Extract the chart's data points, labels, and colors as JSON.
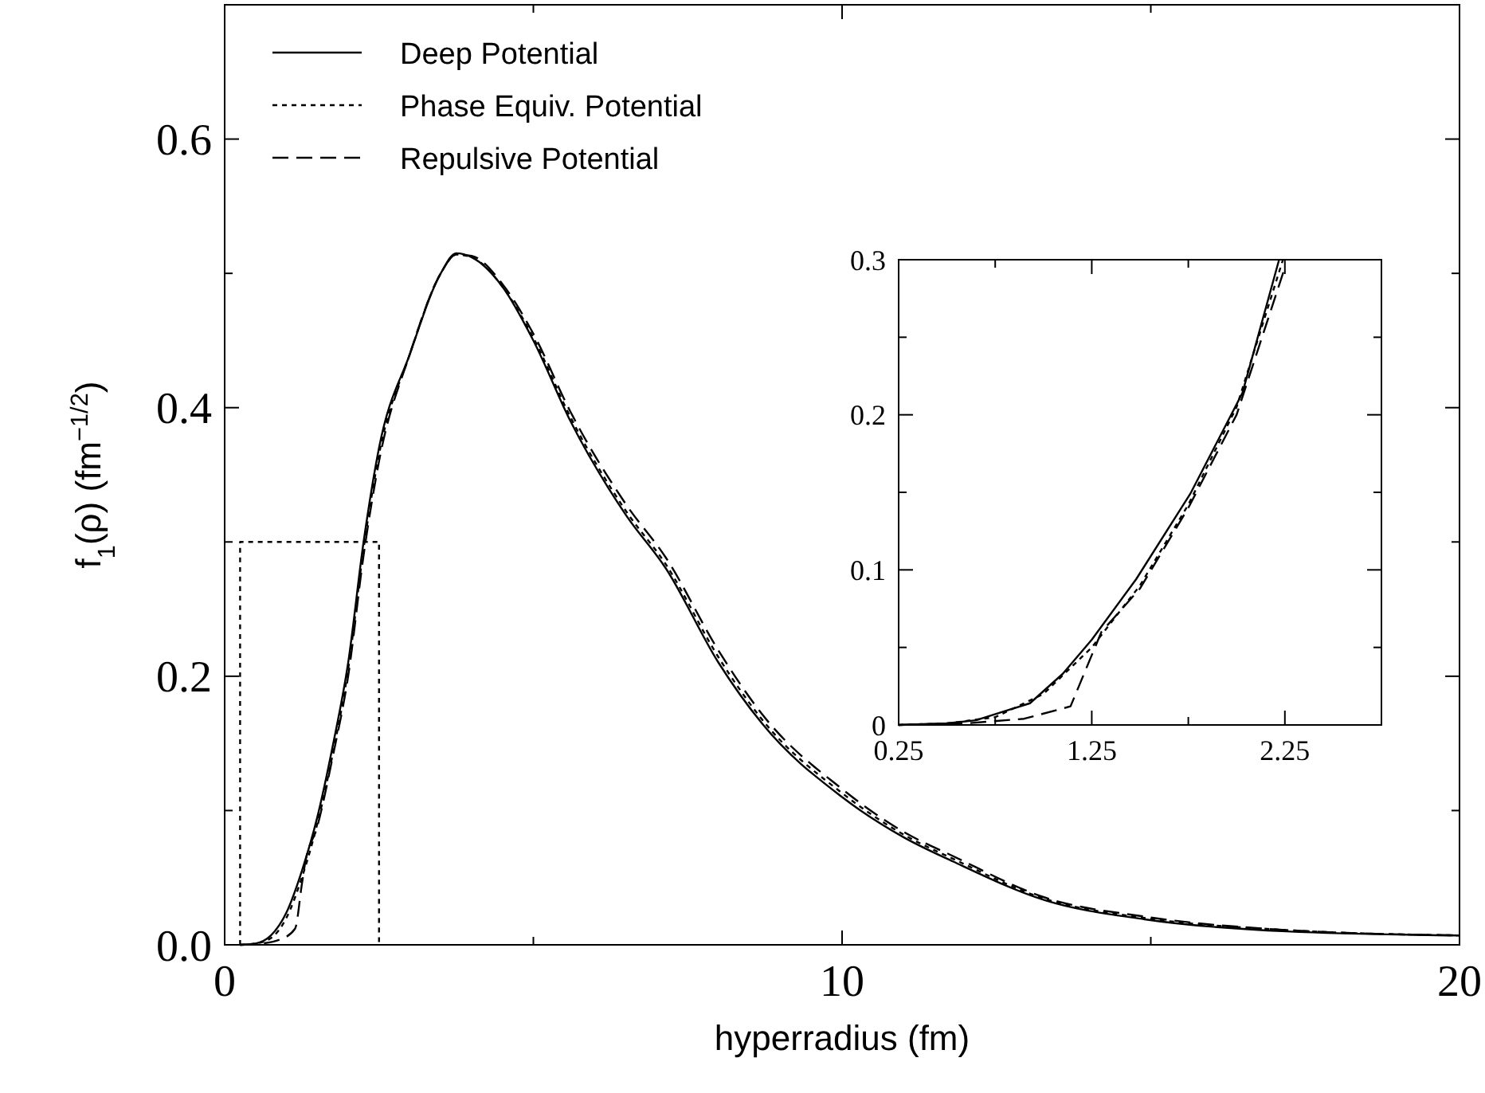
{
  "chart_data": [
    {
      "type": "line",
      "xlabel": "hyperradius (fm)",
      "ylabel": "f$_{1}$(ρ) (fm$^{−1/2}$)",
      "xlim": [
        0,
        20
      ],
      "ylim": [
        0,
        0.7
      ],
      "xticks": [
        0,
        {
          "value": 5,
          "label": null
        },
        10,
        {
          "value": 15,
          "label": null
        },
        20
      ],
      "yticks": [
        {
          "value": 0,
          "label": "0.0"
        },
        {
          "value": 0.1,
          "label": null
        },
        0.2,
        {
          "value": 0.3,
          "label": null
        },
        0.4,
        {
          "value": 0.5,
          "label": null
        },
        0.6
      ],
      "legend": "top left",
      "grid": false,
      "series": [
        {
          "name": "Deep Potential",
          "color": "#000000",
          "line_style": "solid",
          "x": [
            0.25,
            0.5,
            0.75,
            1.0,
            1.25,
            1.5,
            1.75,
            2.0,
            2.25,
            2.5,
            3,
            3.5,
            3.75,
            4,
            4.5,
            5,
            5.6,
            6.5,
            7.15,
            8,
            8.7,
            10,
            11,
            11.8,
            13.3,
            14.9,
            17.2,
            20
          ],
          "values": [
            0,
            0.001,
            0.007,
            0.024,
            0.055,
            0.095,
            0.148,
            0.21,
            0.3,
            0.37,
            0.44,
            0.5,
            0.515,
            0.512,
            0.49,
            0.45,
            0.39,
            0.32,
            0.28,
            0.21,
            0.165,
            0.11,
            0.08,
            0.062,
            0.033,
            0.019,
            0.01,
            0.007
          ]
        },
        {
          "name": "Phase Equiv. Potential",
          "color": "#000000",
          "line_style": "dotted",
          "x": [
            0.25,
            0.5,
            0.75,
            1.0,
            1.25,
            1.5,
            1.75,
            2.0,
            2.25,
            2.5,
            3,
            3.5,
            3.75,
            4,
            4.5,
            5,
            5.6,
            6.5,
            7.15,
            8,
            8.7,
            10,
            11,
            11.8,
            13.3,
            14.9,
            17.2,
            20
          ],
          "values": [
            0,
            0.001,
            0.005,
            0.02,
            0.05,
            0.09,
            0.142,
            0.205,
            0.295,
            0.365,
            0.44,
            0.5,
            0.514,
            0.512,
            0.49,
            0.452,
            0.393,
            0.323,
            0.283,
            0.214,
            0.168,
            0.113,
            0.082,
            0.064,
            0.034,
            0.02,
            0.011,
            0.007
          ]
        },
        {
          "name": "Repulsive Potential",
          "color": "#000000",
          "line_style": "dashed",
          "x": [
            0.25,
            0.6,
            0.9,
            1.14,
            1.25,
            1.3,
            1.5,
            1.75,
            2.0,
            2.25,
            2.5,
            3,
            3.5,
            3.75,
            4,
            4.5,
            5,
            5.6,
            6.5,
            7.15,
            8,
            8.7,
            10,
            11,
            11.8,
            13.3,
            14.9,
            17.2,
            20
          ],
          "values": [
            0,
            0.001,
            0.004,
            0.012,
            0.045,
            0.06,
            0.088,
            0.14,
            0.2,
            0.29,
            0.36,
            0.44,
            0.5,
            0.514,
            0.513,
            0.492,
            0.455,
            0.397,
            0.328,
            0.288,
            0.219,
            0.172,
            0.116,
            0.084,
            0.066,
            0.035,
            0.021,
            0.011,
            0.007
          ]
        },
        {
          "type": "line",
          "color": "#000000",
          "line_style": "dotted",
          "x": [
            0.25,
            0.25,
            2.5,
            2.5
          ],
          "values": [
            0,
            0.3,
            0.3,
            0
          ]
        }
      ]
    },
    {
      "type": "line",
      "xlim": [
        0.25,
        2.75
      ],
      "ylim": [
        0,
        0.3
      ],
      "xticks": [
        0.25,
        {
          "value": 0.75,
          "label": null
        },
        1.25,
        {
          "value": 1.75,
          "label": null
        },
        2.25
      ],
      "yticks": [
        0,
        {
          "value": 0.05,
          "label": null
        },
        0.1,
        {
          "value": 0.15,
          "label": null
        },
        0.2,
        {
          "value": 0.25,
          "label": null
        },
        0.3
      ],
      "grid": false,
      "series": [
        {
          "color": "#000000",
          "line_style": "solid",
          "x": [
            0.25,
            0.5,
            0.65,
            0.93,
            1.1,
            1.25,
            1.48,
            1.76,
            2.03,
            2.22
          ],
          "values": [
            0,
            0.001,
            0.003,
            0.014,
            0.033,
            0.055,
            0.094,
            0.149,
            0.214,
            0.3
          ]
        },
        {
          "color": "#000000",
          "line_style": "dotted",
          "x": [
            0.25,
            0.5,
            0.75,
            1.0,
            1.25,
            1.5,
            1.75,
            2.0,
            2.24
          ],
          "values": [
            0,
            0.001,
            0.005,
            0.02,
            0.05,
            0.09,
            0.142,
            0.205,
            0.3
          ]
        },
        {
          "color": "#000000",
          "line_style": "dashed",
          "x": [
            0.25,
            0.6,
            0.9,
            1.14,
            1.25,
            1.3,
            1.5,
            1.75,
            2.0,
            2.25
          ],
          "values": [
            0,
            0.001,
            0.004,
            0.012,
            0.045,
            0.06,
            0.088,
            0.14,
            0.2,
            0.295
          ]
        }
      ]
    }
  ]
}
